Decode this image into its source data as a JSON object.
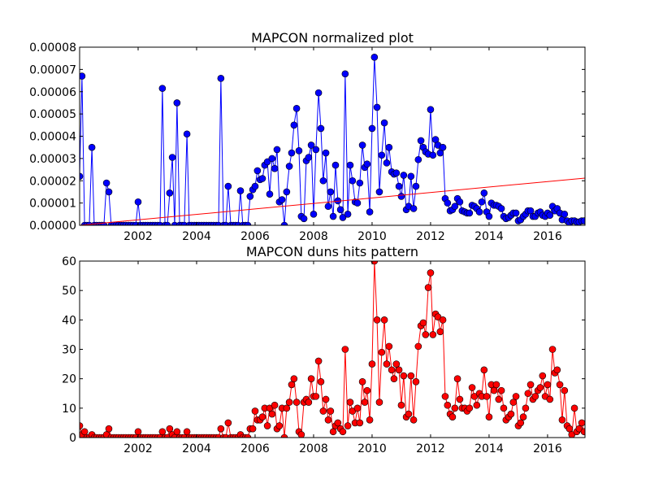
{
  "chart_data": [
    {
      "type": "line",
      "title": "MAPCON normalized plot",
      "xlim": [
        2000,
        2017.28
      ],
      "xticks": [
        2002,
        2004,
        2006,
        2008,
        2010,
        2012,
        2014,
        2016
      ],
      "ylim": [
        0,
        8e-05
      ],
      "yticks": [
        {
          "value": 0,
          "label": "0.00000"
        },
        1e-05,
        2e-05,
        3e-05,
        4e-05,
        5e-05,
        6e-05,
        7e-05,
        8e-05
      ],
      "x": [
        2000,
        2000.08,
        2000.17,
        2000.25,
        2000.33,
        2000.42,
        2000.5,
        2000.58,
        2000.67,
        2000.75,
        2000.83,
        2000.92,
        2001,
        2001.08,
        2001.17,
        2001.25,
        2001.33,
        2001.42,
        2001.5,
        2001.58,
        2001.67,
        2001.75,
        2001.83,
        2001.92,
        2002,
        2002.08,
        2002.17,
        2002.25,
        2002.33,
        2002.42,
        2002.5,
        2002.58,
        2002.67,
        2002.75,
        2002.83,
        2002.92,
        2003,
        2003.08,
        2003.17,
        2003.25,
        2003.33,
        2003.42,
        2003.5,
        2003.58,
        2003.67,
        2003.75,
        2003.83,
        2003.92,
        2004,
        2004.08,
        2004.17,
        2004.25,
        2004.33,
        2004.42,
        2004.5,
        2004.58,
        2004.67,
        2004.75,
        2004.83,
        2004.92,
        2005,
        2005.08,
        2005.17,
        2005.25,
        2005.33,
        2005.42,
        2005.5,
        2005.58,
        2005.67,
        2005.75,
        2005.83,
        2005.92,
        2006,
        2006.08,
        2006.17,
        2006.25,
        2006.33,
        2006.42,
        2006.5,
        2006.58,
        2006.67,
        2006.75,
        2006.83,
        2006.92,
        2007,
        2007.08,
        2007.17,
        2007.25,
        2007.33,
        2007.42,
        2007.5,
        2007.58,
        2007.67,
        2007.75,
        2007.83,
        2007.92,
        2008,
        2008.08,
        2008.17,
        2008.25,
        2008.33,
        2008.42,
        2008.5,
        2008.58,
        2008.67,
        2008.75,
        2008.83,
        2008.92,
        2009,
        2009.08,
        2009.17,
        2009.25,
        2009.33,
        2009.42,
        2009.5,
        2009.58,
        2009.67,
        2009.75,
        2009.83,
        2009.92,
        2010,
        2010.08,
        2010.17,
        2010.25,
        2010.33,
        2010.42,
        2010.5,
        2010.58,
        2010.67,
        2010.75,
        2010.83,
        2010.92,
        2011,
        2011.08,
        2011.17,
        2011.25,
        2011.33,
        2011.42,
        2011.5,
        2011.58,
        2011.67,
        2011.75,
        2011.83,
        2011.92,
        2012,
        2012.08,
        2012.17,
        2012.25,
        2012.33,
        2012.42,
        2012.5,
        2012.58,
        2012.67,
        2012.75,
        2012.83,
        2012.92,
        2013,
        2013.08,
        2013.17,
        2013.25,
        2013.33,
        2013.42,
        2013.5,
        2013.58,
        2013.67,
        2013.75,
        2013.83,
        2013.92,
        2014,
        2014.08,
        2014.17,
        2014.25,
        2014.33,
        2014.42,
        2014.5,
        2014.58,
        2014.67,
        2014.75,
        2014.83,
        2014.92,
        2015,
        2015.08,
        2015.17,
        2015.25,
        2015.33,
        2015.42,
        2015.5,
        2015.58,
        2015.67,
        2015.75,
        2015.83,
        2015.92,
        2016,
        2016.08,
        2016.17,
        2016.25,
        2016.33,
        2016.42,
        2016.5,
        2016.58,
        2016.67,
        2016.75,
        2016.83,
        2016.92,
        2017,
        2017.08,
        2017.17,
        2017.25
      ],
      "series": [
        {
          "color": "#0000ff",
          "values": [
            2.2e-05,
            6.7e-05,
            0,
            0,
            0,
            3.5e-05,
            0,
            0,
            0,
            0,
            0,
            1.9e-05,
            1.5e-05,
            0,
            0,
            0,
            0,
            0,
            0,
            0,
            0,
            0,
            0,
            0,
            1.05e-05,
            0,
            0,
            0,
            0,
            0,
            0,
            0,
            0,
            0,
            6.15e-05,
            0,
            0,
            1.45e-05,
            3.05e-05,
            0,
            5.5e-05,
            0,
            0,
            0,
            4.1e-05,
            0,
            0,
            0,
            0,
            0,
            0,
            0,
            0,
            0,
            0,
            0,
            0,
            0,
            6.6e-05,
            0,
            0,
            1.75e-05,
            0,
            0,
            0,
            0,
            1.55e-05,
            0,
            0,
            0,
            1.3e-05,
            1.6e-05,
            1.75e-05,
            2.45e-05,
            2.05e-05,
            2.1e-05,
            2.7e-05,
            2.85e-05,
            1.4e-05,
            3e-05,
            2.55e-05,
            3.4e-05,
            1.05e-05,
            1.15e-05,
            0,
            1.5e-05,
            2.65e-05,
            3.25e-05,
            4.5e-05,
            5.25e-05,
            3.35e-05,
            4e-06,
            3e-06,
            2.9e-05,
            3.05e-05,
            3.6e-05,
            5e-06,
            3.4e-05,
            5.95e-05,
            4.35e-05,
            2e-05,
            3.25e-05,
            8.5e-06,
            1.5e-05,
            4e-06,
            2.7e-05,
            1.1e-05,
            7e-06,
            3.5e-06,
            6.8e-05,
            5e-06,
            2.7e-05,
            2e-05,
            1.05e-05,
            1e-05,
            1.9e-05,
            3.6e-05,
            2.6e-05,
            2.75e-05,
            6e-06,
            4.35e-05,
            7.55e-05,
            5.3e-05,
            1.5e-05,
            3.15e-05,
            4.6e-05,
            2.8e-05,
            3.5e-05,
            2.4e-05,
            2.3e-05,
            2.35e-05,
            1.75e-05,
            1.3e-05,
            2.25e-05,
            7e-06,
            8.5e-06,
            2.2e-05,
            7.5e-06,
            1.75e-05,
            2.95e-05,
            3.8e-05,
            3.5e-05,
            3.3e-05,
            3.2e-05,
            5.2e-05,
            3.15e-05,
            3.85e-05,
            3.6e-05,
            3.25e-05,
            3.5e-05,
            1.2e-05,
            1e-05,
            6.5e-06,
            7e-06,
            8.5e-06,
            1.2e-05,
            1.05e-05,
            6.5e-06,
            6e-06,
            5.5e-06,
            5.5e-06,
            9e-06,
            8.5e-06,
            7.5e-06,
            6e-06,
            1.05e-05,
            1.45e-05,
            6e-06,
            4e-06,
            1e-05,
            9e-06,
            9e-06,
            8.5e-06,
            7.5e-06,
            4e-06,
            3e-06,
            3.5e-06,
            4.5e-06,
            5.5e-06,
            5.5e-06,
            2e-06,
            2.5e-06,
            4e-06,
            5e-06,
            6.5e-06,
            6.5e-06,
            4e-06,
            4e-06,
            5.5e-06,
            6e-06,
            4.5e-06,
            4e-06,
            5.5e-06,
            4.5e-06,
            8.5e-06,
            6.5e-06,
            7.5e-06,
            5.5e-06,
            2.5e-06,
            5e-06,
            2e-06,
            1e-06,
            2e-06,
            2e-06,
            1.5e-06,
            1.5e-06,
            2e-06,
            2e-06
          ]
        }
      ],
      "trend": {
        "color": "#ff0000",
        "x": [
          2000,
          2017.28
        ],
        "values": [
          0,
          2.12e-05
        ]
      }
    },
    {
      "type": "line",
      "title": "MAPCON duns hits pattern",
      "xlim": [
        2000,
        2017.28
      ],
      "xticks": [
        2002,
        2004,
        2006,
        2008,
        2010,
        2012,
        2014,
        2016
      ],
      "ylim": [
        0,
        60
      ],
      "yticks": [
        0,
        10,
        20,
        30,
        40,
        50,
        60
      ],
      "x": [
        2000,
        2000.08,
        2000.17,
        2000.25,
        2000.33,
        2000.42,
        2000.5,
        2000.58,
        2000.67,
        2000.75,
        2000.83,
        2000.92,
        2001,
        2001.08,
        2001.17,
        2001.25,
        2001.33,
        2001.42,
        2001.5,
        2001.58,
        2001.67,
        2001.75,
        2001.83,
        2001.92,
        2002,
        2002.08,
        2002.17,
        2002.25,
        2002.33,
        2002.42,
        2002.5,
        2002.58,
        2002.67,
        2002.75,
        2002.83,
        2002.92,
        2003,
        2003.08,
        2003.17,
        2003.25,
        2003.33,
        2003.42,
        2003.5,
        2003.58,
        2003.67,
        2003.75,
        2003.83,
        2003.92,
        2004,
        2004.08,
        2004.17,
        2004.25,
        2004.33,
        2004.42,
        2004.5,
        2004.58,
        2004.67,
        2004.75,
        2004.83,
        2004.92,
        2005,
        2005.08,
        2005.17,
        2005.25,
        2005.33,
        2005.42,
        2005.5,
        2005.58,
        2005.67,
        2005.75,
        2005.83,
        2005.92,
        2006,
        2006.08,
        2006.17,
        2006.25,
        2006.33,
        2006.42,
        2006.5,
        2006.58,
        2006.67,
        2006.75,
        2006.83,
        2006.92,
        2007,
        2007.08,
        2007.17,
        2007.25,
        2007.33,
        2007.42,
        2007.5,
        2007.58,
        2007.67,
        2007.75,
        2007.83,
        2007.92,
        2008,
        2008.08,
        2008.17,
        2008.25,
        2008.33,
        2008.42,
        2008.5,
        2008.58,
        2008.67,
        2008.75,
        2008.83,
        2008.92,
        2009,
        2009.08,
        2009.17,
        2009.25,
        2009.33,
        2009.42,
        2009.5,
        2009.58,
        2009.67,
        2009.75,
        2009.83,
        2009.92,
        2010,
        2010.08,
        2010.17,
        2010.25,
        2010.33,
        2010.42,
        2010.5,
        2010.58,
        2010.67,
        2010.75,
        2010.83,
        2010.92,
        2011,
        2011.08,
        2011.17,
        2011.25,
        2011.33,
        2011.42,
        2011.5,
        2011.58,
        2011.67,
        2011.75,
        2011.83,
        2011.92,
        2012,
        2012.08,
        2012.17,
        2012.25,
        2012.33,
        2012.42,
        2012.5,
        2012.58,
        2012.67,
        2012.75,
        2012.83,
        2012.92,
        2013,
        2013.08,
        2013.17,
        2013.25,
        2013.33,
        2013.42,
        2013.5,
        2013.58,
        2013.67,
        2013.75,
        2013.83,
        2013.92,
        2014,
        2014.08,
        2014.17,
        2014.25,
        2014.33,
        2014.42,
        2014.5,
        2014.58,
        2014.67,
        2014.75,
        2014.83,
        2014.92,
        2015,
        2015.08,
        2015.17,
        2015.25,
        2015.33,
        2015.42,
        2015.5,
        2015.58,
        2015.67,
        2015.75,
        2015.83,
        2015.92,
        2016,
        2016.08,
        2016.17,
        2016.25,
        2016.33,
        2016.42,
        2016.5,
        2016.58,
        2016.67,
        2016.75,
        2016.83,
        2016.92,
        2017,
        2017.08,
        2017.17,
        2017.25
      ],
      "series": [
        {
          "color": "#ff0000",
          "values": [
            4,
            1,
            2,
            0,
            0,
            1,
            0,
            0,
            0,
            0,
            0,
            1,
            3,
            0,
            0,
            0,
            0,
            0,
            0,
            0,
            0,
            0,
            0,
            0,
            2,
            0,
            0,
            0,
            0,
            0,
            0,
            0,
            0,
            0,
            2,
            0,
            0,
            3,
            1,
            0,
            2,
            0,
            0,
            0,
            2,
            0,
            0,
            0,
            0,
            0,
            0,
            0,
            0,
            0,
            0,
            0,
            0,
            0,
            3,
            0,
            0,
            5,
            0,
            0,
            0,
            0,
            1,
            0,
            0,
            0,
            3,
            3,
            9,
            6,
            6,
            7,
            10,
            4,
            10,
            8,
            11,
            3,
            4,
            10,
            0,
            10,
            12,
            18,
            20,
            12,
            2,
            1,
            12,
            13,
            12,
            20,
            14,
            14,
            26,
            19,
            9,
            13,
            6,
            9,
            2,
            4,
            5,
            3,
            2,
            30,
            4,
            12,
            9,
            5,
            10,
            5,
            19,
            12,
            16,
            6,
            25,
            60,
            40,
            12,
            29,
            40,
            25,
            31,
            23,
            20,
            25,
            23,
            11,
            21,
            7,
            8,
            21,
            6,
            19,
            31,
            38,
            39,
            35,
            51,
            56,
            35,
            42,
            41,
            36,
            40,
            14,
            11,
            8,
            7,
            10,
            20,
            13,
            10,
            10,
            9,
            10,
            17,
            14,
            11,
            15,
            14,
            23,
            14,
            7,
            18,
            16,
            18,
            13,
            16,
            10,
            6,
            7,
            8,
            12,
            14,
            4,
            5,
            7,
            10,
            15,
            18,
            13,
            14,
            16,
            17,
            21,
            14,
            18,
            13,
            30,
            22,
            23,
            18,
            6,
            16,
            4,
            3,
            1,
            10,
            2,
            3,
            5,
            2
          ]
        }
      ]
    }
  ]
}
